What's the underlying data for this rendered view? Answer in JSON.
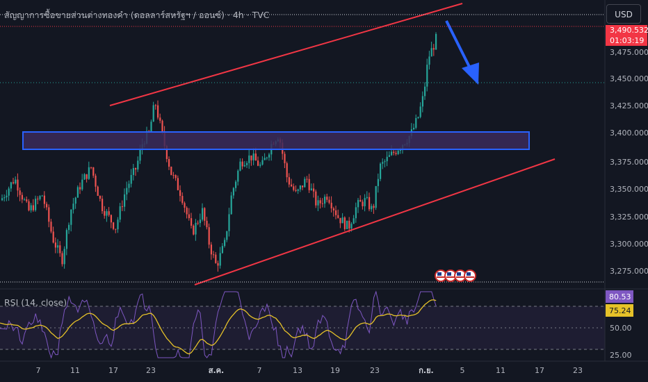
{
  "header": {
    "title": "สัญญาการซื้อขายส่วนต่างทองคำ (ดอลลาร์สหรัฐฯ / ออนซ์) · 4h · TVC",
    "currency_button": "USD"
  },
  "price_axis": {
    "ticks": [
      "3,475.000",
      "3,450.000",
      "3,425.000",
      "3,400.000",
      "3,375.000",
      "3,350.000",
      "3,325.000",
      "3,300.000",
      "3,275.000"
    ],
    "last_price": "3,490.532",
    "countdown": "01:03:19"
  },
  "time_axis": {
    "ticks": [
      "7",
      "11",
      "17",
      "23",
      "ส.ค.",
      "7",
      "13",
      "19",
      "23",
      "ก.ย.",
      "5",
      "11",
      "17",
      "23"
    ]
  },
  "rsi": {
    "label": "RSI (14, close)",
    "value": "80.53",
    "ma_value": "75.24",
    "ticks": [
      "50.00",
      "25.00"
    ]
  },
  "colors": {
    "background": "#131722",
    "up": "#26a69a",
    "down": "#ef5350",
    "channel": "#f23645",
    "zone_border": "#2962ff",
    "zone_fill": "#3b2a5a",
    "arrow": "#2962ff",
    "rsi_line": "#7e57c2",
    "rsi_ma": "#e6c229"
  },
  "icons": [
    "us-flag-event-icon",
    "us-flag-event-icon",
    "us-flag-event-icon",
    "us-flag-event-icon"
  ]
}
